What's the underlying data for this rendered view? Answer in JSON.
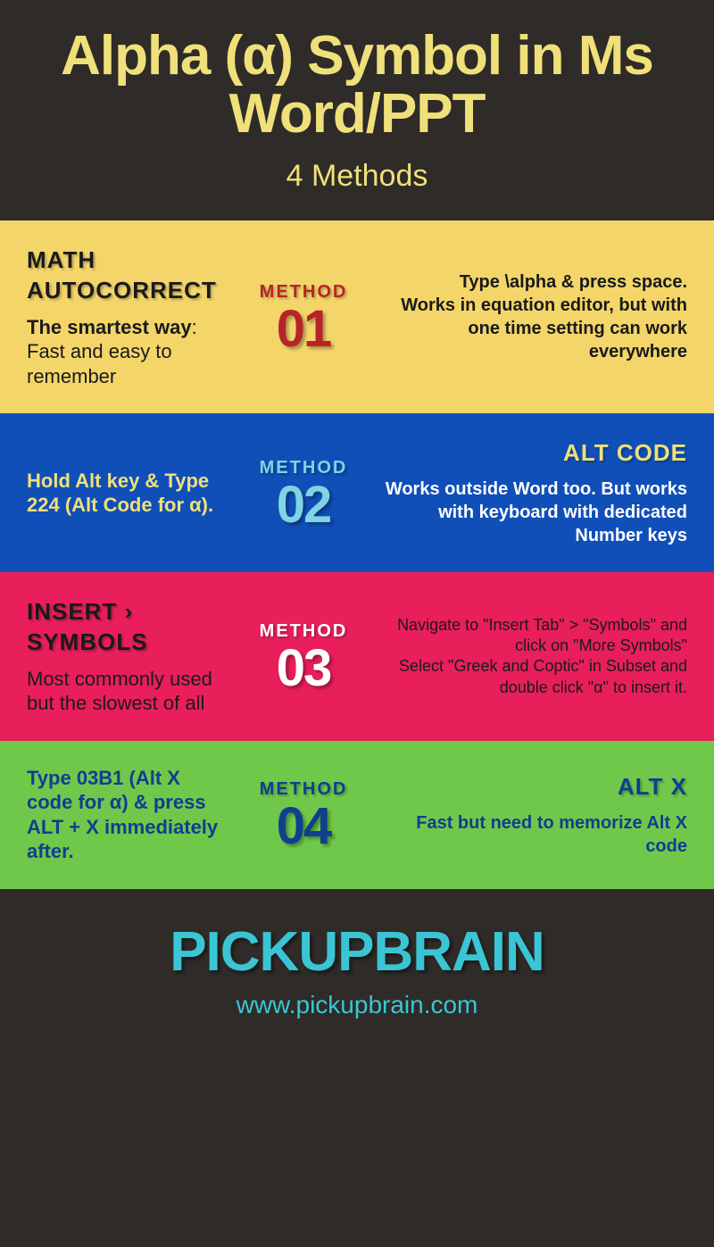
{
  "colors": {
    "page_bg": "#2e2b28",
    "title_color": "#f0e07a",
    "subtitle_color": "#f0e07a",
    "brand_color": "#3bc5d4",
    "url_color": "#3bc5d4",
    "m1_bg": "#f3d56a",
    "m1_title": "#1a1a1a",
    "m1_desc": "#1a1a1a",
    "m1_label": "#b8232a",
    "m1_num": "#b8232a",
    "m1_right": "#1a1a1a",
    "m2_bg": "#104fb8",
    "m2_title": "#f0e07a",
    "m2_left": "#f0e07a",
    "m2_label": "#7fd4e3",
    "m2_num": "#7fd4e3",
    "m2_right": "#ffffff",
    "m3_bg": "#e81f5a",
    "m3_title": "#1a1a1a",
    "m3_desc": "#1a1a1a",
    "m3_label": "#ffffff",
    "m3_num": "#ffffff",
    "m3_right": "#1a1a1a",
    "m4_bg": "#6fc84a",
    "m4_title": "#0f3f8f",
    "m4_left": "#0f3f8f",
    "m4_label": "#0f3f8f",
    "m4_num": "#0f3f8f",
    "m4_right": "#0f3f8f"
  },
  "header": {
    "title": "Alpha (α) Symbol in Ms Word/PPT",
    "subtitle": "4 Methods"
  },
  "methods": {
    "label": "METHOD",
    "m1": {
      "num": "01",
      "title": "MATH AUTOCORRECT",
      "desc_bold": "The smartest way",
      "desc_rest": ": Fast and easy to remember",
      "right_l1": "Type \\alpha & press space.",
      "right_l2": "Works in equation editor, but with one time setting can work everywhere"
    },
    "m2": {
      "num": "02",
      "title": "ALT CODE",
      "left": "Hold Alt key & Type 224 (Alt Code for α).",
      "right": "Works outside Word too. But works with keyboard with dedicated Number keys"
    },
    "m3": {
      "num": "03",
      "title": "INSERT › SYMBOLS",
      "desc": "Most commonly used but the slowest of all",
      "right_a1": "Navigate to \"",
      "right_a2": "Insert Tab",
      "right_a3": "\" > \"",
      "right_a4": "Symbols",
      "right_a5": "\" and ",
      "right_a6": "click on \"More Symbols\"",
      "right_b1": "Select \"",
      "right_b2": "Greek and Coptic\" in Subset",
      "right_b3": " and ",
      "right_b4": "double click",
      "right_b5": " \"α\"  to insert it."
    },
    "m4": {
      "num": "04",
      "title": "ALT X",
      "left": "Type 03B1 (Alt X code for α) & press ALT + X immediately after.",
      "right": "Fast but need to memorize Alt X code"
    }
  },
  "footer": {
    "brand": "PICKUPBRAIN",
    "url": "www.pickupbrain.com"
  }
}
